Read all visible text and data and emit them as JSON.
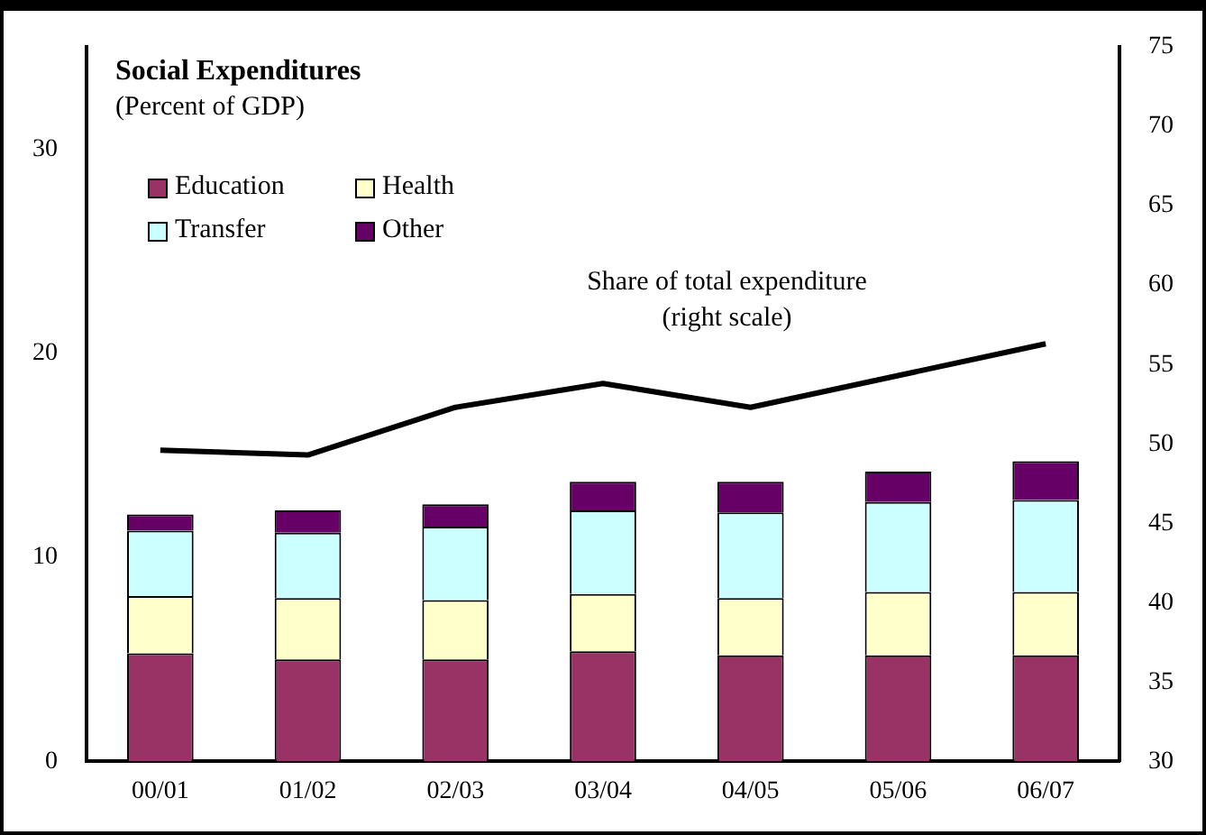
{
  "chart_data": {
    "type": "bar",
    "stacked": true,
    "title": "Social Expenditures",
    "subtitle": "(Percent of GDP)",
    "categories": [
      "00/01",
      "01/02",
      "02/03",
      "03/04",
      "04/05",
      "05/06",
      "06/07"
    ],
    "series": [
      {
        "name": "Education",
        "color": "#993366",
        "values": [
          5.3,
          5.0,
          5.0,
          5.4,
          5.2,
          5.2,
          5.2
        ]
      },
      {
        "name": "Health",
        "color": "#ffffcc",
        "values": [
          2.8,
          3.0,
          2.9,
          2.8,
          2.8,
          3.1,
          3.1
        ]
      },
      {
        "name": "Transfer",
        "color": "#ccffff",
        "values": [
          3.2,
          3.2,
          3.6,
          4.1,
          4.2,
          4.4,
          4.5
        ]
      },
      {
        "name": "Other",
        "color": "#660066",
        "values": [
          0.8,
          1.1,
          1.1,
          1.4,
          1.5,
          1.5,
          1.9
        ]
      },
      {
        "type": "line",
        "axis": "y2",
        "color": "#000000",
        "values": [
          49.6,
          49.3,
          52.3,
          53.8,
          52.3,
          54.3,
          56.3
        ]
      }
    ],
    "ylim": [
      0,
      35
    ],
    "yticks": [
      0,
      10,
      20,
      30
    ],
    "y2lim": [
      30,
      75
    ],
    "y2ticks": [
      30,
      35,
      40,
      45,
      50,
      55,
      60,
      65,
      70,
      75
    ],
    "annotations": [
      "Share of total expenditure\n(right scale)"
    ],
    "legend": "top left",
    "grid": false,
    "marker": "none"
  }
}
